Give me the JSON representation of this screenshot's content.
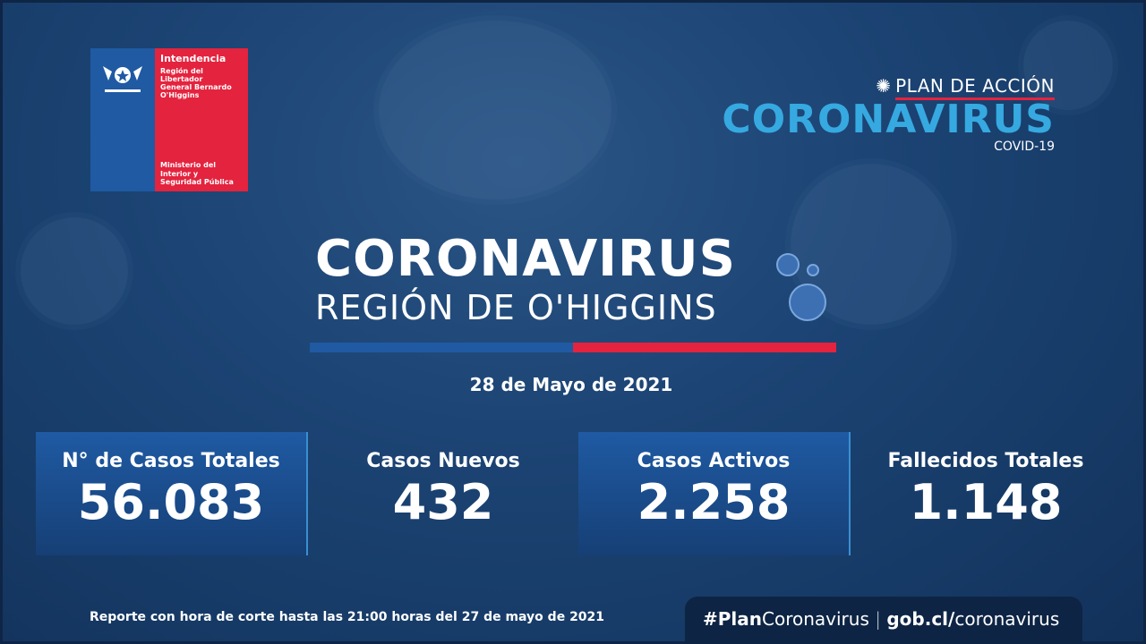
{
  "logo": {
    "title": "Intendencia",
    "region": [
      "Región del Libertador",
      "General Bernardo",
      "O'Higgins"
    ],
    "ministry": [
      "Ministerio del",
      "Interior y",
      "Seguridad Pública"
    ]
  },
  "plan": {
    "line1": "PLAN DE ACCIÓN",
    "line2": "CORONAVIRUS",
    "line3": "COVID-19"
  },
  "title": {
    "main": "CORONAVIRUS",
    "sub": "REGIÓN DE O'HIGGINS"
  },
  "date": "28 de Mayo de 2021",
  "stats": [
    {
      "label": "N° de Casos Totales",
      "value": "56.083"
    },
    {
      "label": "Casos Nuevos",
      "value": "432"
    },
    {
      "label": "Casos Activos",
      "value": "2.258"
    },
    {
      "label": "Fallecidos Totales",
      "value": "1.148"
    }
  ],
  "footer": "Reporte con hora de corte hasta las 21:00 horas del 27 de mayo de 2021",
  "tag": {
    "hash": "#Plan",
    "hash2": "Coronavirus",
    "sep": "|",
    "site": "gob.cl/",
    "site2": "coronavirus"
  },
  "colors": {
    "blue": "#1f5aa3",
    "red": "#e4233e",
    "accent": "#36a9e1"
  }
}
